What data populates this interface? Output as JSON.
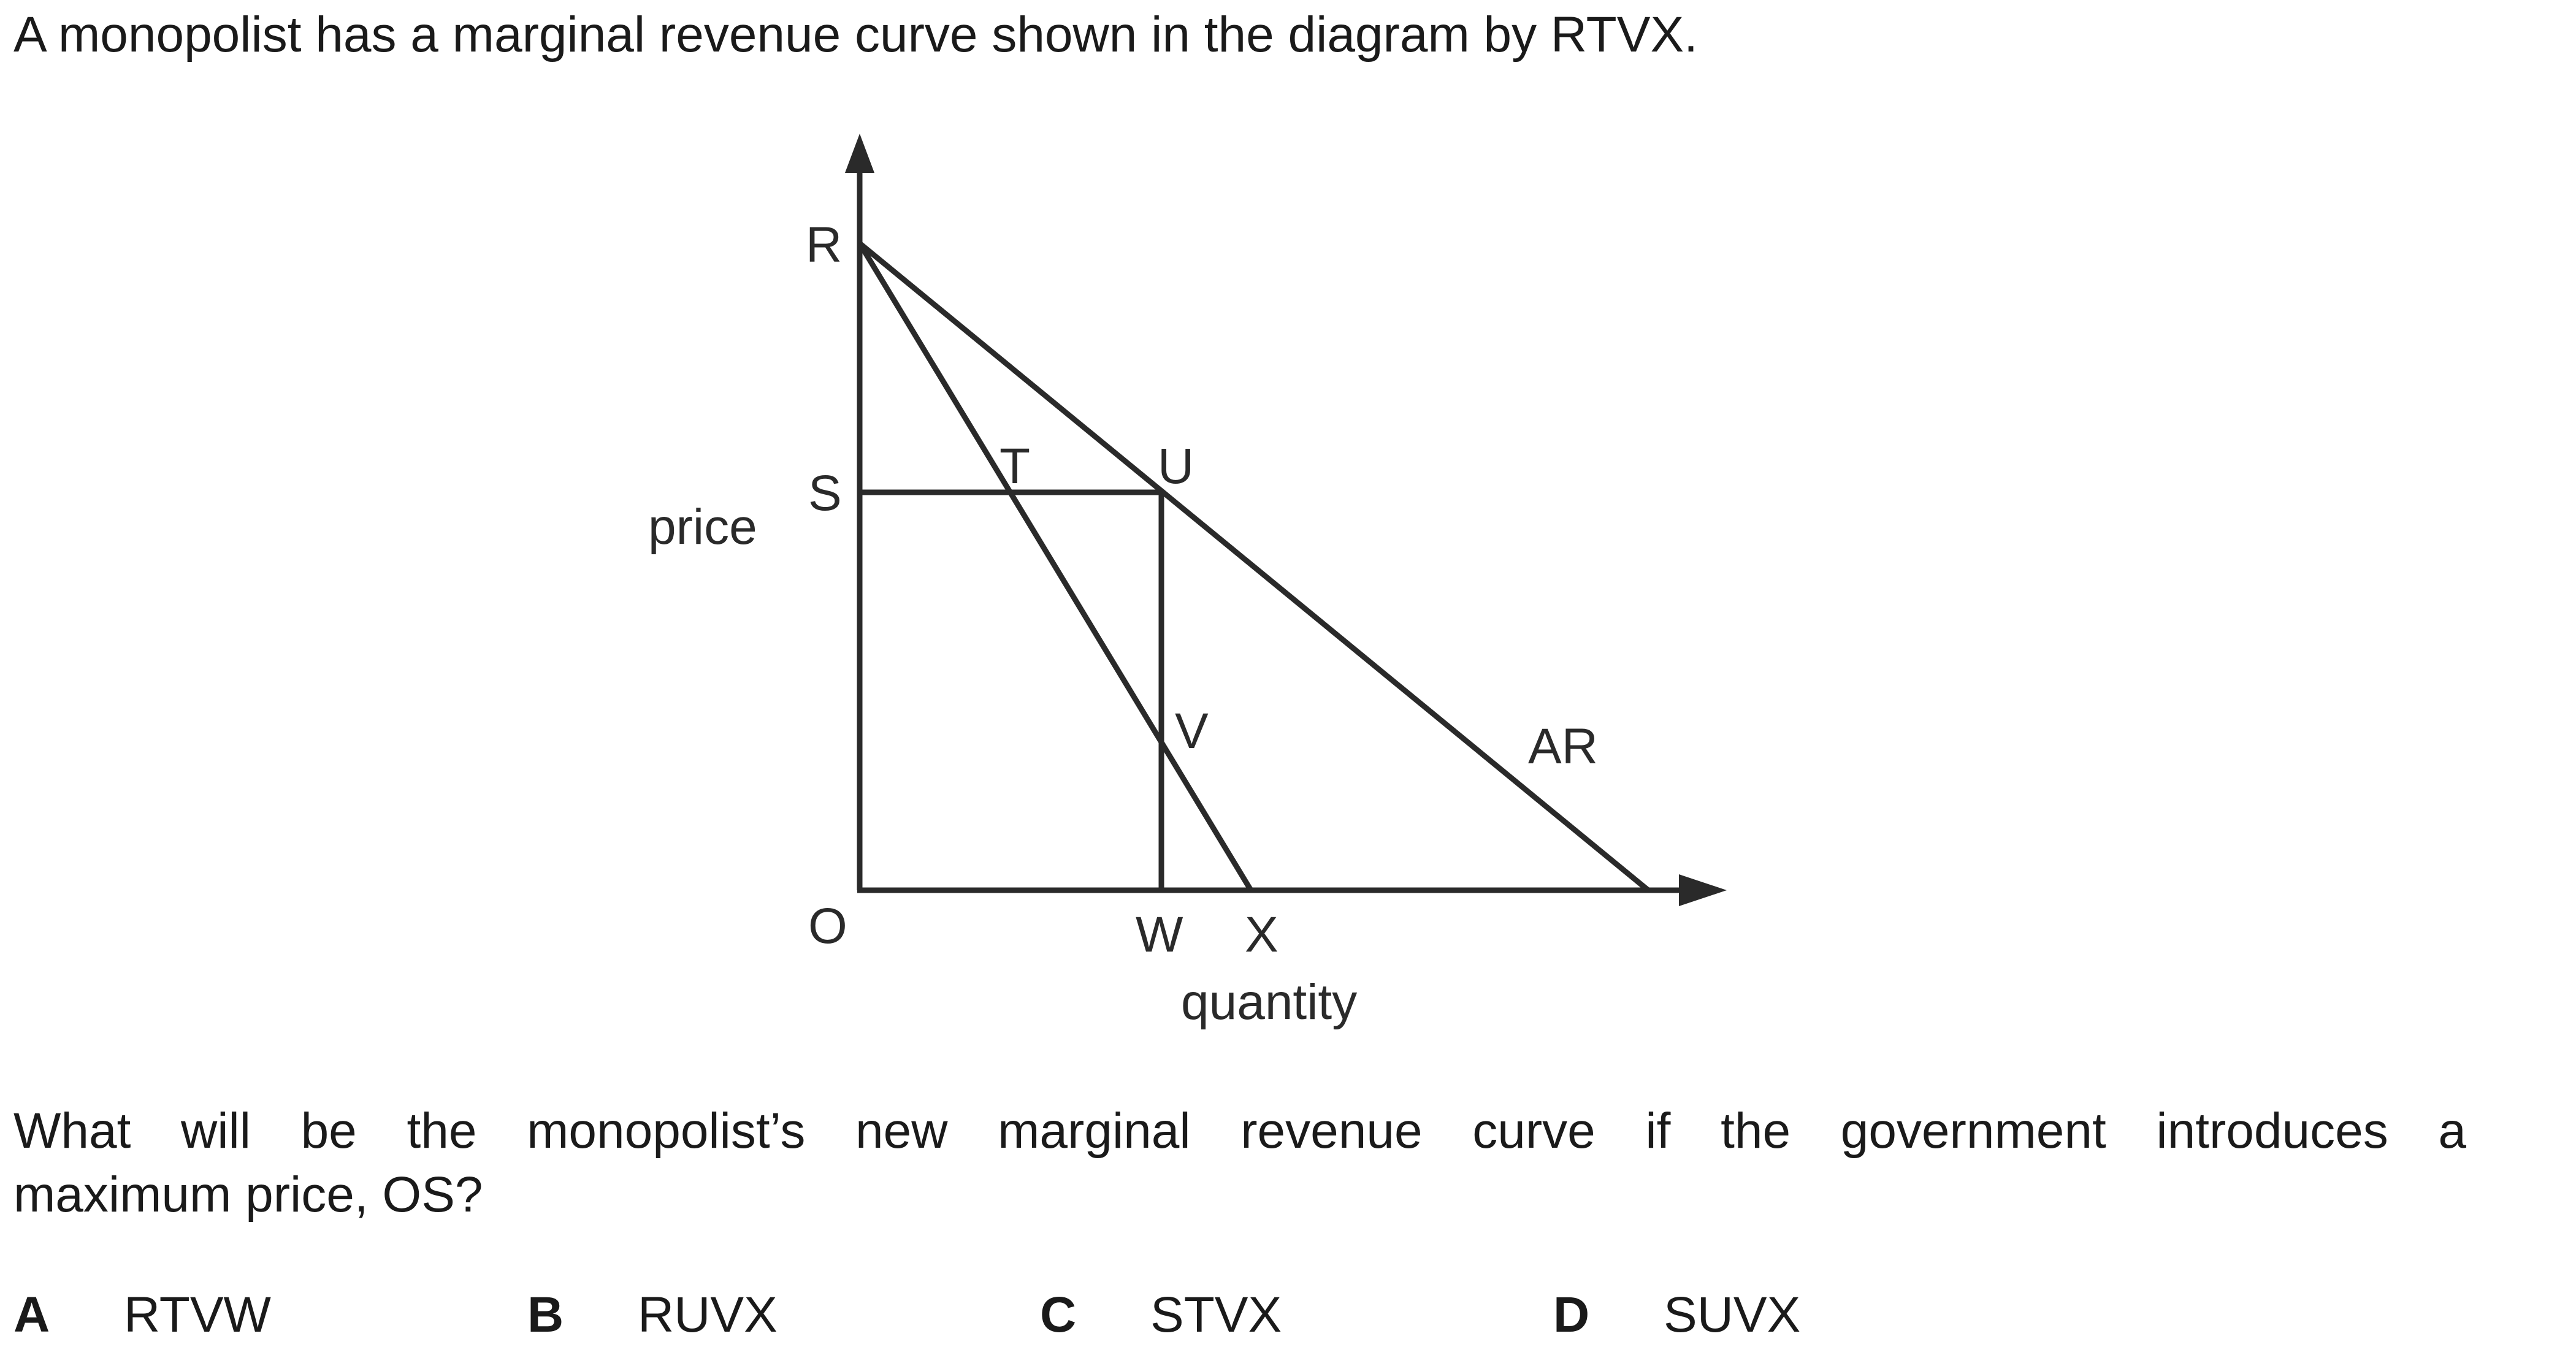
{
  "question": {
    "intro": "A monopolist has a marginal revenue curve shown in the diagram by RTVX.",
    "body_line1": "What will be the monopolist’s new marginal revenue curve if the government introduces a",
    "body_line2": "maximum price, OS?"
  },
  "diagram": {
    "y_axis_label": "price",
    "x_axis_label": "quantity",
    "curve_label": "AR",
    "points": {
      "R": "R",
      "S": "S",
      "T": "T",
      "U": "U",
      "V": "V",
      "O": "O",
      "W": "W",
      "X": "X"
    },
    "colors": {
      "line": "#2a2a2a",
      "text": "#1a1a1a"
    }
  },
  "options": [
    {
      "letter": "A",
      "text": "RTVW"
    },
    {
      "letter": "B",
      "text": "RUVX"
    },
    {
      "letter": "C",
      "text": "STVX"
    },
    {
      "letter": "D",
      "text": "SUVX"
    }
  ]
}
